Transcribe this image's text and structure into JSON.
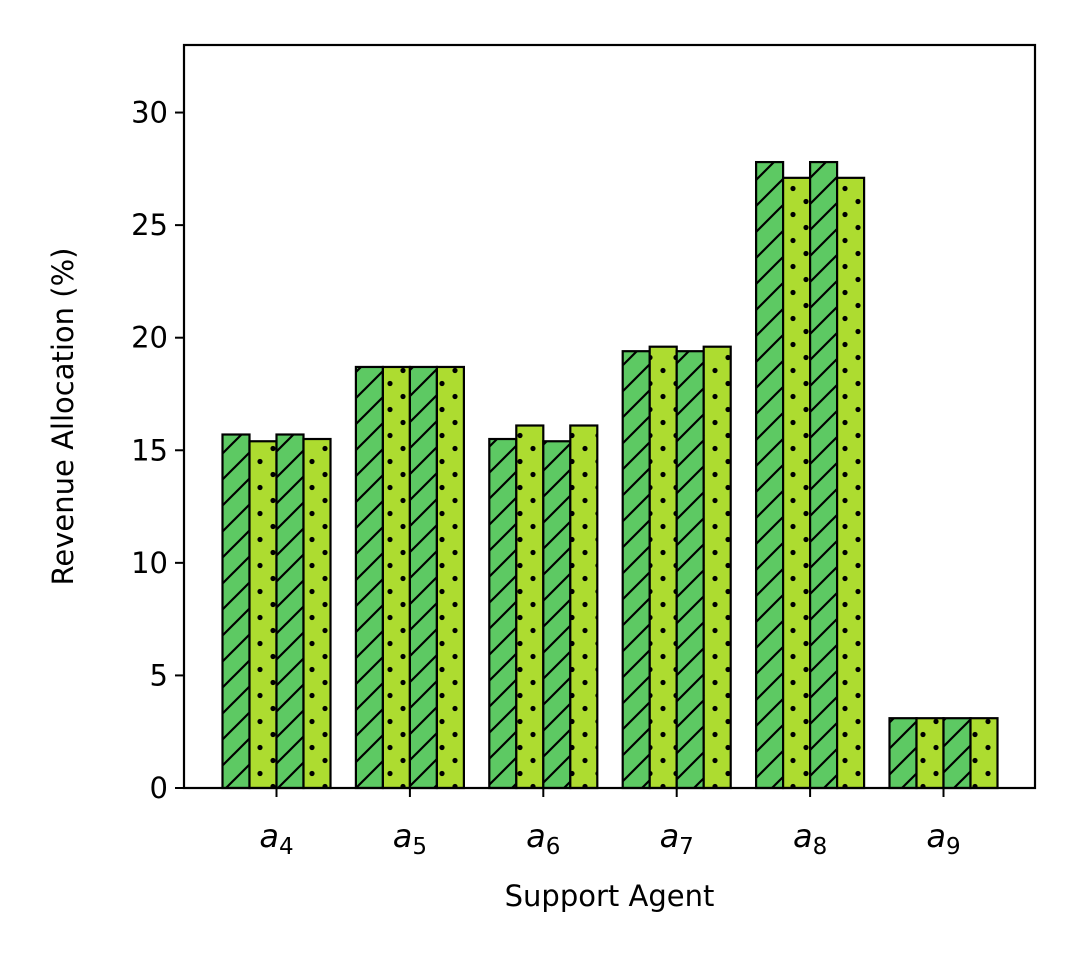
{
  "chart_data": {
    "type": "bar",
    "title": "",
    "xlabel": "Support Agent",
    "ylabel": "Revenue Allocation (%)",
    "ylim": [
      0,
      33
    ],
    "yticks": [
      0,
      5,
      10,
      15,
      20,
      25,
      30
    ],
    "grid": false,
    "legend": "none",
    "categories": [
      {
        "base": "a",
        "sub": "4"
      },
      {
        "base": "a",
        "sub": "5"
      },
      {
        "base": "a",
        "sub": "6"
      },
      {
        "base": "a",
        "sub": "7"
      },
      {
        "base": "a",
        "sub": "8"
      },
      {
        "base": "a",
        "sub": "9"
      }
    ],
    "series": [
      {
        "color": "#5dc963",
        "hatch": "diagonal",
        "values": [
          15.7,
          18.7,
          15.5,
          19.4,
          27.8,
          3.1
        ]
      },
      {
        "color": "#addc30",
        "hatch": "dots",
        "values": [
          15.4,
          18.7,
          16.1,
          19.6,
          27.1,
          3.1
        ]
      },
      {
        "color": "#5dc963",
        "hatch": "diagonal",
        "values": [
          15.7,
          18.7,
          15.4,
          19.4,
          27.8,
          3.1
        ]
      },
      {
        "color": "#addc30",
        "hatch": "dots",
        "values": [
          15.5,
          18.7,
          16.1,
          19.6,
          27.1,
          3.1
        ]
      }
    ]
  }
}
